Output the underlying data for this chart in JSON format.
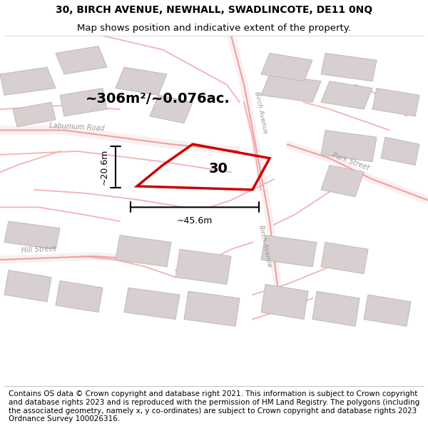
{
  "title_line1": "30, BIRCH AVENUE, NEWHALL, SWADLINCOTE, DE11 0NQ",
  "title_line2": "Map shows position and indicative extent of the property.",
  "footer_text": "Contains OS data © Crown copyright and database right 2021. This information is subject to Crown copyright and database rights 2023 and is reproduced with the permission of HM Land Registry. The polygons (including the associated geometry, namely x, y co-ordinates) are subject to Crown copyright and database rights 2023 Ordnance Survey 100026316.",
  "map_bg": "#f8f4f4",
  "road_color": "#f0a0a0",
  "building_color": "#d8d0d0",
  "building_edge": "#c0b8b8",
  "highlight_color": "#cc0000",
  "area_text": "~306m²/~0.076ac.",
  "number_label": "30",
  "width_label": "~45.6m",
  "height_label": "~20.6m",
  "title_fontsize": 10,
  "footer_fontsize": 7.5,
  "road_label_color": "#999999",
  "road_fill": "#faf0f0"
}
